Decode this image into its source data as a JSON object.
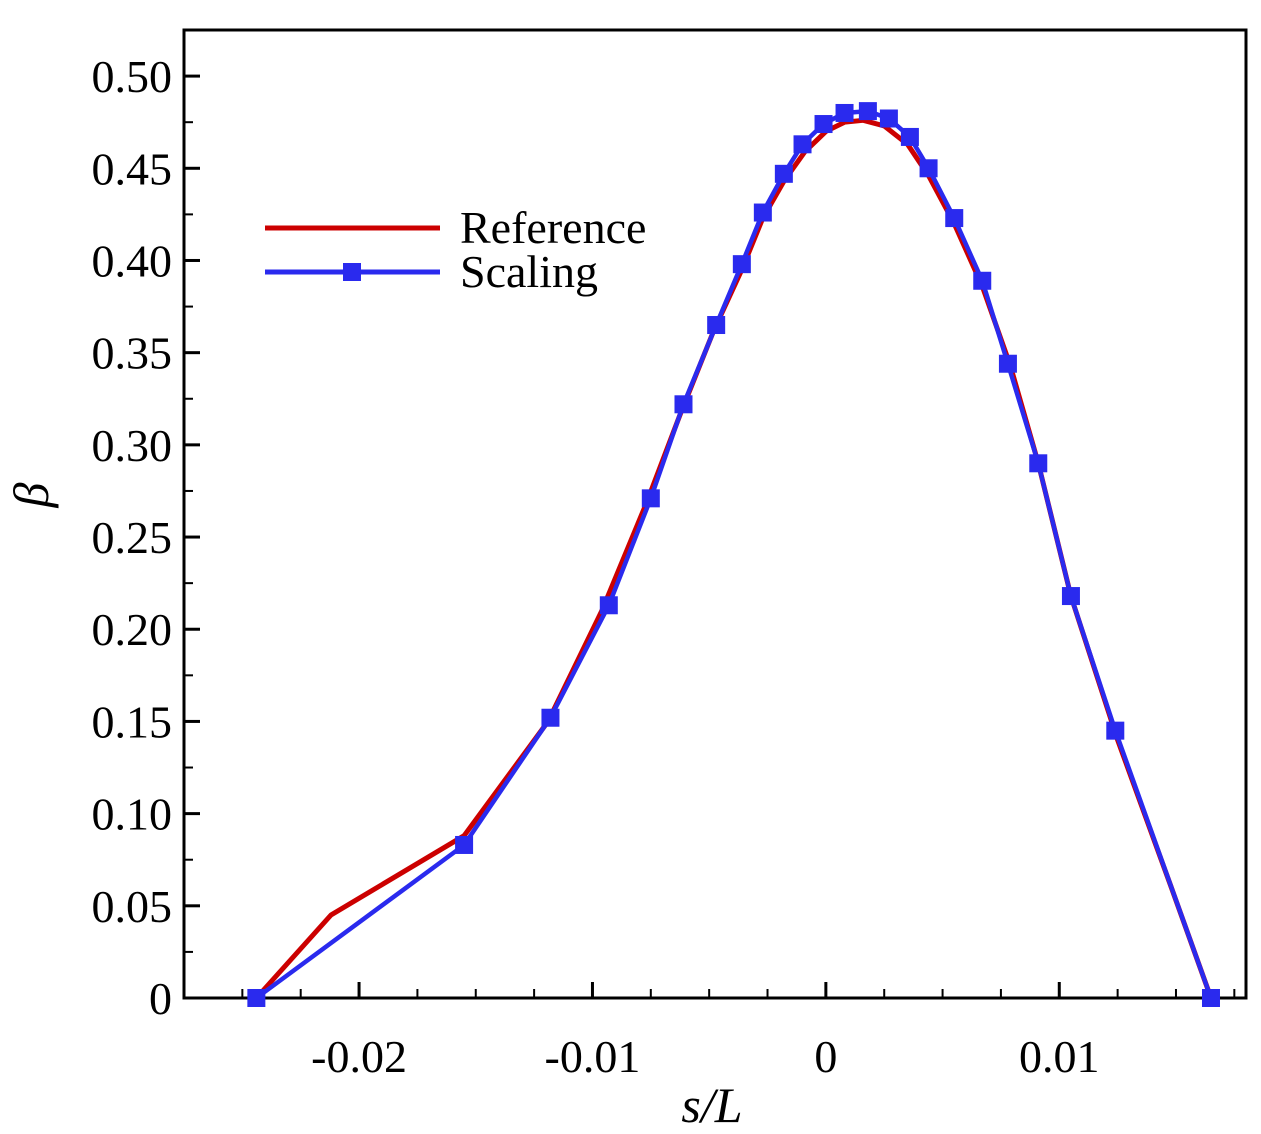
{
  "chart_data": {
    "type": "line",
    "xlabel": "s/L",
    "ylabel": "β",
    "xlim": [
      -0.0275,
      0.018
    ],
    "ylim": [
      0,
      0.525
    ],
    "x_ticks": [
      -0.02,
      -0.01,
      0,
      0.01
    ],
    "x_tick_labels": [
      "-0.02",
      "-0.01",
      "0",
      "0.01"
    ],
    "x_minor_step": 0.0025,
    "y_ticks": [
      0,
      0.05,
      0.1,
      0.15,
      0.2,
      0.25,
      0.3,
      0.35,
      0.4,
      0.45,
      0.5
    ],
    "y_tick_labels": [
      "0",
      "0.05",
      "0.10",
      "0.15",
      "0.20",
      "0.25",
      "0.30",
      "0.35",
      "0.40",
      "0.45",
      "0.50"
    ],
    "grid": false,
    "legend_position": "upper-left",
    "series": [
      {
        "name": "Reference",
        "color": "#cc0000",
        "marker": "none",
        "x": [
          -0.0244,
          -0.0212,
          -0.0155,
          -0.0119,
          -0.0096,
          -0.0077,
          -0.0062,
          -0.0048,
          -0.0036,
          -0.0027,
          -0.0018,
          -0.0009,
          0.0,
          0.0008,
          0.0016,
          0.0025,
          0.0035,
          0.0044,
          0.0055,
          0.0067,
          0.0079,
          0.0091,
          0.0105,
          0.0125,
          0.0148,
          0.0165
        ],
        "y": [
          0.0,
          0.045,
          0.088,
          0.15,
          0.21,
          0.268,
          0.318,
          0.362,
          0.395,
          0.423,
          0.443,
          0.459,
          0.47,
          0.475,
          0.476,
          0.473,
          0.463,
          0.446,
          0.42,
          0.386,
          0.343,
          0.29,
          0.218,
          0.14,
          0.06,
          0.0
        ]
      },
      {
        "name": "Scaling",
        "color": "#2a2aee",
        "marker": "square",
        "x": [
          -0.0244,
          -0.0155,
          -0.0118,
          -0.0093,
          -0.0075,
          -0.0061,
          -0.0047,
          -0.0036,
          -0.0027,
          -0.0018,
          -0.001,
          -0.0001,
          0.0008,
          0.0018,
          0.0027,
          0.0036,
          0.0044,
          0.0055,
          0.0067,
          0.0078,
          0.0091,
          0.0105,
          0.0124,
          0.0165
        ],
        "y": [
          0.0,
          0.083,
          0.152,
          0.213,
          0.271,
          0.322,
          0.365,
          0.398,
          0.426,
          0.447,
          0.463,
          0.474,
          0.48,
          0.481,
          0.477,
          0.467,
          0.45,
          0.423,
          0.389,
          0.344,
          0.29,
          0.218,
          0.145,
          0.0
        ]
      }
    ]
  }
}
